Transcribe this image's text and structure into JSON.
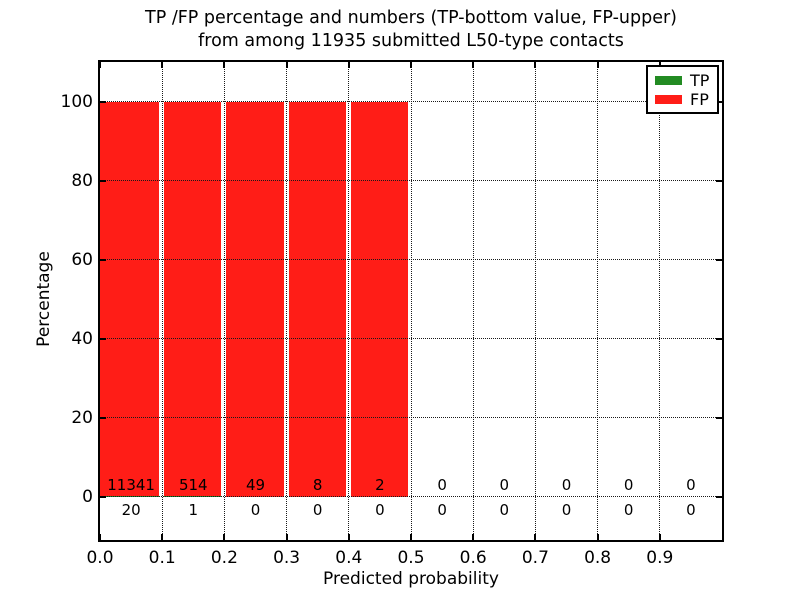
{
  "figure": {
    "title_line1": "TP /FP percentage and numbers (TP-bottom value, FP-upper)",
    "title_line2": "from among 11935 submitted L50-type contacts"
  },
  "axes": {
    "xlabel": "Predicted probability",
    "ylabel": "Percentage",
    "x_ticks": [
      "0.0",
      "0.1",
      "0.2",
      "0.3",
      "0.4",
      "0.5",
      "0.6",
      "0.7",
      "0.8",
      "0.9"
    ],
    "y_ticks": [
      "0",
      "20",
      "40",
      "60",
      "80",
      "100"
    ]
  },
  "legend": {
    "items": [
      {
        "label": "TP",
        "color": "#228b22"
      },
      {
        "label": "FP",
        "color": "#ff1d17"
      }
    ]
  },
  "chart_data": {
    "type": "bar",
    "stacked": true,
    "title": "TP /FP percentage and numbers (TP-bottom value, FP-upper) from among 11935 submitted L50-type contacts",
    "xlabel": "Predicted probability",
    "ylabel": "Percentage",
    "total_submitted": 11935,
    "bin_width": 0.1,
    "bin_starts": [
      0.0,
      0.1,
      0.2,
      0.3,
      0.4,
      0.5,
      0.6,
      0.7,
      0.8,
      0.9
    ],
    "series": [
      {
        "name": "TP",
        "position": "bottom",
        "color": "#228b22",
        "counts": [
          20,
          1,
          0,
          0,
          0,
          0,
          0,
          0,
          0,
          0
        ]
      },
      {
        "name": "FP",
        "position": "upper",
        "color": "#ff1d17",
        "counts": [
          11341,
          514,
          49,
          8,
          2,
          0,
          0,
          0,
          0,
          0
        ]
      }
    ],
    "bar_total_percent_when_nonempty": 100,
    "xlim": [
      0,
      1
    ],
    "ylim": [
      -11,
      110
    ],
    "grid": true,
    "grid_style": "dotted",
    "legend_position": "upper right"
  }
}
